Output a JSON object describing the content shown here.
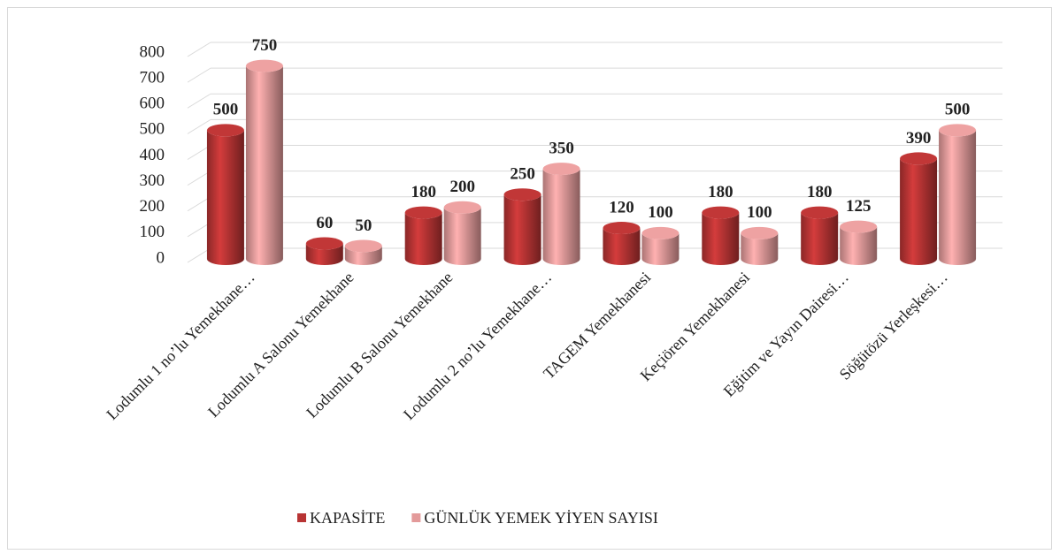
{
  "chart_data": {
    "type": "bar3d",
    "categories": [
      "Lodumlu 1 no’lu Yemekhane…",
      "Lodumlu A Salonu Yemekhane",
      "Lodumlu B Salonu Yemekhane",
      "Lodumlu 2 no’lu Yemekhane…",
      "TAGEM Yemekhanesi",
      "Keçiören Yemekhanesi",
      "Eğitim ve Yayın Dairesi…",
      "Söğütözü Yerleşkesi…"
    ],
    "series": [
      {
        "name": "KAPASİTE",
        "color": "#b83434",
        "values": [
          500,
          60,
          180,
          250,
          120,
          180,
          180,
          390
        ]
      },
      {
        "name": "GÜNLÜK YEMEK YİYEN SAYISI",
        "color": "#e39a9a",
        "values": [
          750,
          50,
          200,
          350,
          100,
          100,
          125,
          500
        ]
      }
    ],
    "ylim": [
      0,
      800
    ],
    "yticks": [
      0,
      100,
      200,
      300,
      400,
      500,
      600,
      700,
      800
    ],
    "grid": true,
    "legend": "bottom"
  }
}
